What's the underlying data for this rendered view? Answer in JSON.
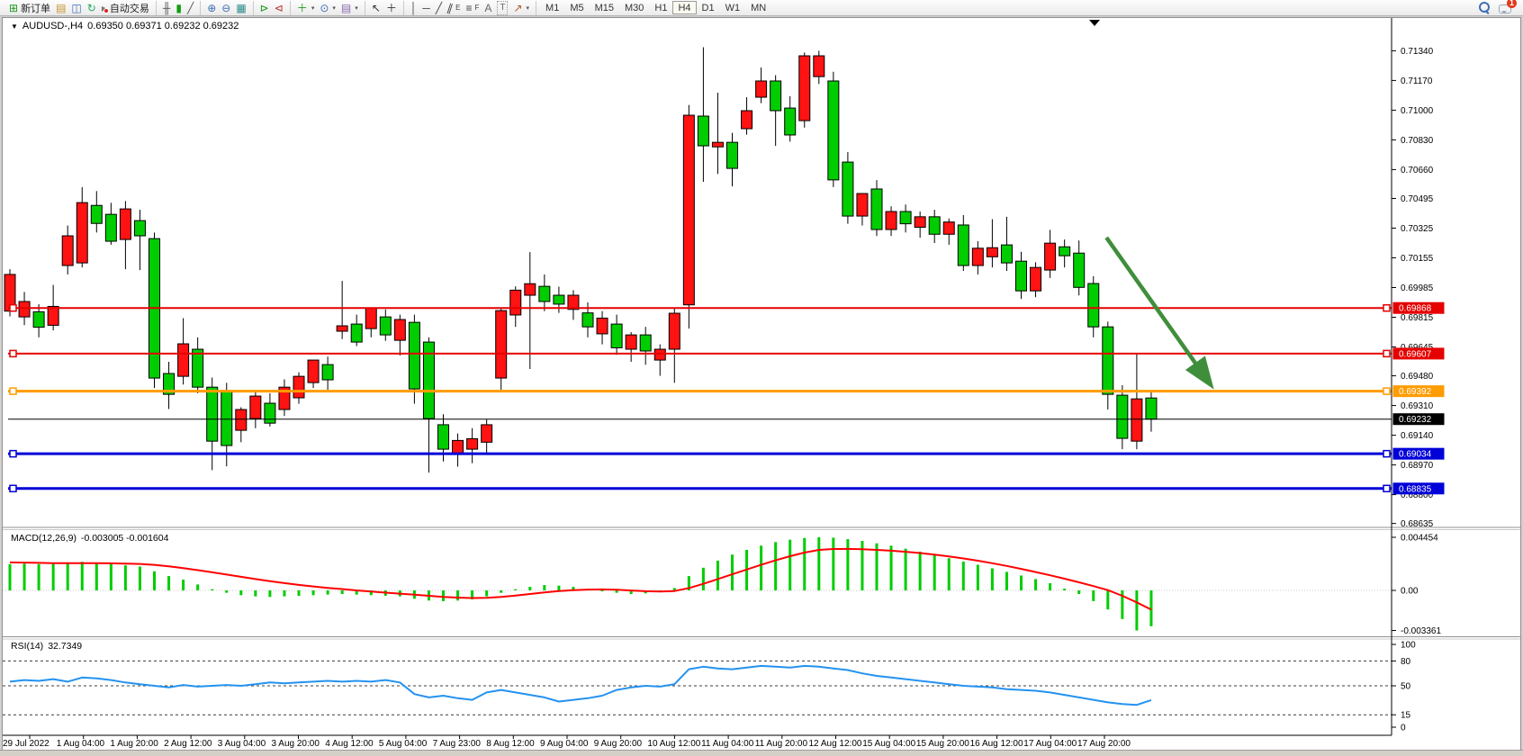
{
  "window": {
    "title_prefix": "▼",
    "symbol_period": "AUDUSD-,H4",
    "quote_text": "0.69350 0.69371 0.69232 0.69232"
  },
  "toolbar": {
    "new_order": "新订单",
    "autotrading": "自动交易",
    "notification_badge": "1",
    "timeframes": [
      "M1",
      "M5",
      "M15",
      "M30",
      "H1",
      "H4",
      "D1",
      "W1",
      "MN"
    ],
    "active_timeframe": "H4",
    "icons": {
      "new_order": "⊞",
      "charts_profile": "▤",
      "new_chart": "◫",
      "refresh": "↻",
      "autotrade": "▸",
      "bars": "╫",
      "candles": "▮",
      "line": "╱",
      "zoom_in": "⊕",
      "zoom_out": "⊖",
      "tile": "▦",
      "autoscroll": "⊳",
      "shift": "⊲",
      "indicators": "＋",
      "periods": "⊙",
      "templates": "▤",
      "cursor": "↖",
      "crosshair": "＋",
      "vline": "│",
      "hline": "─",
      "trend": "╱",
      "channel": "∥",
      "channel_sub": "E",
      "fibo": "≡",
      "fibo_sub": "F",
      "text": "A",
      "label": "T",
      "arrows": "↗",
      "caret": "▾"
    }
  },
  "chart_data": {
    "type": "candlestick",
    "symbol": "AUDUSD-",
    "timeframe": "H4",
    "quote": {
      "open": "0.69350",
      "high": "0.69371",
      "low": "0.69232",
      "close": "0.69232"
    },
    "colors": {
      "up": "#fe1212",
      "down": "#00cd00",
      "wick": "#000000",
      "macd_bar": "#00cd00",
      "macd_signal": "#ff0000",
      "rsi_line": "#2492f0",
      "line_red": "#e60000",
      "line_orange": "#ff9c00",
      "line_blue": "#0000d8",
      "current": "#000000",
      "arrow": "#3f8e3b"
    },
    "price_axis": {
      "min": 0.68635,
      "max": 0.7134,
      "ticks": [
        "0.71340",
        "0.71170",
        "0.71000",
        "0.70830",
        "0.70660",
        "0.70495",
        "0.70325",
        "0.70155",
        "0.69985",
        "0.69815",
        "0.69645",
        "0.69480",
        "0.69310",
        "0.69140",
        "0.68970",
        "0.68800",
        "0.68635"
      ]
    },
    "x_labels": [
      "29 Jul 2022",
      "1 Aug 04:00",
      "1 Aug 20:00",
      "2 Aug 12:00",
      "3 Aug 04:00",
      "3 Aug 20:00",
      "4 Aug 12:00",
      "5 Aug 04:00",
      "7 Aug 23:00",
      "8 Aug 12:00",
      "9 Aug 04:00",
      "9 Aug 20:00",
      "10 Aug 12:00",
      "11 Aug 04:00",
      "11 Aug 20:00",
      "12 Aug 12:00",
      "15 Aug 04:00",
      "15 Aug 20:00",
      "16 Aug 12:00",
      "17 Aug 04:00",
      "17 Aug 20:00"
    ],
    "candles": [
      [
        0.6985,
        0.7009,
        0.6982,
        0.7006
      ],
      [
        0.69817,
        0.6996,
        0.6977,
        0.69905
      ],
      [
        0.69846,
        0.6989,
        0.697,
        0.69758
      ],
      [
        0.69769,
        0.7,
        0.6974,
        0.69877
      ],
      [
        0.70111,
        0.7034,
        0.7006,
        0.70281
      ],
      [
        0.70126,
        0.7056,
        0.701,
        0.70471
      ],
      [
        0.70455,
        0.70537,
        0.703,
        0.70352
      ],
      [
        0.70404,
        0.7047,
        0.7023,
        0.7025
      ],
      [
        0.7026,
        0.7048,
        0.7009,
        0.70435
      ],
      [
        0.70368,
        0.7043,
        0.70085,
        0.70281
      ],
      [
        0.70265,
        0.703,
        0.6941,
        0.69467
      ],
      [
        0.69493,
        0.6956,
        0.6929,
        0.69374
      ],
      [
        0.69477,
        0.6981,
        0.6943,
        0.69663
      ],
      [
        0.69632,
        0.697,
        0.6938,
        0.69415
      ],
      [
        0.69415,
        0.6947,
        0.6894,
        0.69106
      ],
      [
        0.6939,
        0.6944,
        0.68962,
        0.69081
      ],
      [
        0.69168,
        0.693,
        0.691,
        0.69287
      ],
      [
        0.69235,
        0.6939,
        0.6918,
        0.69364
      ],
      [
        0.69323,
        0.6938,
        0.6919,
        0.69209
      ],
      [
        0.69287,
        0.6946,
        0.6925,
        0.69415
      ],
      [
        0.69354,
        0.695,
        0.6932,
        0.69477
      ],
      [
        0.69441,
        0.6956,
        0.6941,
        0.6957
      ],
      [
        0.69544,
        0.6959,
        0.694,
        0.69457
      ],
      [
        0.69735,
        0.70023,
        0.6969,
        0.69766
      ],
      [
        0.69776,
        0.6983,
        0.6965,
        0.69673
      ],
      [
        0.6975,
        0.6987,
        0.697,
        0.69869
      ],
      [
        0.69817,
        0.6986,
        0.6968,
        0.69714
      ],
      [
        0.69683,
        0.6983,
        0.69596,
        0.69802
      ],
      [
        0.69786,
        0.6983,
        0.6932,
        0.69405
      ],
      [
        0.69673,
        0.697,
        0.68926,
        0.69235
      ],
      [
        0.692,
        0.6926,
        0.6899,
        0.6906
      ],
      [
        0.69034,
        0.6915,
        0.6896,
        0.6911
      ],
      [
        0.6906,
        0.6918,
        0.6898,
        0.6912
      ],
      [
        0.691,
        0.6923,
        0.6903,
        0.692
      ],
      [
        0.69467,
        0.6987,
        0.694,
        0.69853
      ],
      [
        0.69828,
        0.69992,
        0.6976,
        0.6997
      ],
      [
        0.69941,
        0.70188,
        0.69519,
        0.70007
      ],
      [
        0.69992,
        0.7006,
        0.6985,
        0.69905
      ],
      [
        0.69941,
        0.6999,
        0.6984,
        0.6989
      ],
      [
        0.6986,
        0.6997,
        0.698,
        0.69941
      ],
      [
        0.6984,
        0.699,
        0.697,
        0.6976
      ],
      [
        0.6972,
        0.6985,
        0.6966,
        0.6981
      ],
      [
        0.69776,
        0.6983,
        0.696,
        0.6964
      ],
      [
        0.69632,
        0.6973,
        0.6956,
        0.69714
      ],
      [
        0.69714,
        0.6976,
        0.69543,
        0.69622
      ],
      [
        0.6957,
        0.6966,
        0.6948,
        0.69632
      ],
      [
        0.69632,
        0.6987,
        0.6944,
        0.69838
      ],
      [
        0.69886,
        0.7103,
        0.6975,
        0.70971
      ],
      [
        0.70966,
        0.7136,
        0.7059,
        0.70796
      ],
      [
        0.7079,
        0.711,
        0.70635,
        0.70816
      ],
      [
        0.70816,
        0.7087,
        0.70564,
        0.70667
      ],
      [
        0.70894,
        0.71074,
        0.7086,
        0.70997
      ],
      [
        0.71074,
        0.71244,
        0.7104,
        0.71167
      ],
      [
        0.71167,
        0.712,
        0.70796,
        0.70997
      ],
      [
        0.71012,
        0.7108,
        0.7082,
        0.70858
      ],
      [
        0.7094,
        0.7133,
        0.709,
        0.71311
      ],
      [
        0.71192,
        0.7134,
        0.7115,
        0.71311
      ],
      [
        0.71167,
        0.7122,
        0.7056,
        0.70601
      ],
      [
        0.70703,
        0.7076,
        0.7035,
        0.70394
      ],
      [
        0.70394,
        0.7048,
        0.7034,
        0.70523
      ],
      [
        0.70549,
        0.706,
        0.7028,
        0.70317
      ],
      [
        0.70317,
        0.7045,
        0.7028,
        0.7042
      ],
      [
        0.7042,
        0.7046,
        0.703,
        0.7035
      ],
      [
        0.7033,
        0.7042,
        0.7027,
        0.7039
      ],
      [
        0.7039,
        0.7043,
        0.7024,
        0.7029
      ],
      [
        0.7029,
        0.7038,
        0.7023,
        0.7036
      ],
      [
        0.70343,
        0.704,
        0.7008,
        0.70111
      ],
      [
        0.70111,
        0.7025,
        0.7006,
        0.7021
      ],
      [
        0.70161,
        0.70376,
        0.701,
        0.70213
      ],
      [
        0.70229,
        0.7039,
        0.7008,
        0.70126
      ],
      [
        0.70136,
        0.7019,
        0.6992,
        0.69966
      ],
      [
        0.69966,
        0.7013,
        0.6993,
        0.701
      ],
      [
        0.70085,
        0.70315,
        0.7004,
        0.70239
      ],
      [
        0.70218,
        0.7026,
        0.701,
        0.70167
      ],
      [
        0.70182,
        0.70254,
        0.6994,
        0.69986
      ],
      [
        0.70008,
        0.7005,
        0.697,
        0.6976
      ],
      [
        0.6976,
        0.6979,
        0.69287,
        0.69374
      ],
      [
        0.69369,
        0.69426,
        0.6906,
        0.69122
      ],
      [
        0.69106,
        0.69607,
        0.6906,
        0.69348
      ],
      [
        0.69353,
        0.6939,
        0.6916,
        0.69232
      ]
    ],
    "horizontal_lines": [
      {
        "price": 0.69868,
        "label": "0.69868",
        "color": "#e60000",
        "width": 2
      },
      {
        "price": 0.69607,
        "label": "0.69607",
        "color": "#e60000",
        "width": 2
      },
      {
        "price": 0.69392,
        "label": "0.69392",
        "color": "#ff9c00",
        "width": 3
      },
      {
        "price": 0.69034,
        "label": "0.69034",
        "color": "#0000d8",
        "width": 3
      },
      {
        "price": 0.68835,
        "label": "0.68835",
        "color": "#0000d8",
        "width": 3
      }
    ],
    "current_price": {
      "value": 0.69232,
      "label": "0.69232"
    },
    "trend_arrow": {
      "start_index": 75.9,
      "start_price": 0.70271,
      "end_index": 83.1,
      "end_price": 0.69431
    },
    "macd": {
      "label": "MACD(12,26,9)",
      "value_text": "-0.003005 -0.001604",
      "axis_ticks": [
        {
          "v": 4.454,
          "t": "0.004454"
        },
        {
          "v": 0,
          "t": "0.00"
        },
        {
          "v": -3.361,
          "t": "-0.003361"
        }
      ],
      "values": [
        2.2,
        2.25,
        2.2,
        2.3,
        2.35,
        2.4,
        2.3,
        2.2,
        2.1,
        2.0,
        1.6,
        1.2,
        0.9,
        0.5,
        0.1,
        -0.2,
        -0.4,
        -0.5,
        -0.55,
        -0.5,
        -0.45,
        -0.4,
        -0.35,
        -0.3,
        -0.35,
        -0.4,
        -0.45,
        -0.5,
        -0.7,
        -0.85,
        -0.9,
        -0.85,
        -0.75,
        -0.5,
        -0.2,
        0.1,
        0.3,
        0.45,
        0.4,
        0.3,
        0.15,
        -0.05,
        -0.2,
        -0.3,
        -0.25,
        -0.1,
        0.2,
        1.2,
        1.9,
        2.5,
        3.0,
        3.4,
        3.75,
        4.05,
        4.25,
        4.4,
        4.454,
        4.42,
        4.3,
        4.15,
        3.95,
        3.75,
        3.5,
        3.25,
        3.0,
        2.7,
        2.42,
        2.15,
        1.85,
        1.55,
        1.25,
        0.95,
        0.6,
        0.15,
        -0.3,
        -0.9,
        -1.6,
        -2.4,
        -3.361,
        -3.005
      ],
      "signal": [
        2.35,
        2.33,
        2.31,
        2.29,
        2.28,
        2.28,
        2.28,
        2.27,
        2.25,
        2.22,
        2.14,
        2.02,
        1.87,
        1.7,
        1.52,
        1.33,
        1.14,
        0.95,
        0.77,
        0.61,
        0.46,
        0.33,
        0.21,
        0.11,
        0.0,
        -0.1,
        -0.19,
        -0.27,
        -0.36,
        -0.45,
        -0.54,
        -0.6,
        -0.64,
        -0.62,
        -0.54,
        -0.43,
        -0.3,
        -0.17,
        -0.06,
        0.02,
        0.07,
        0.08,
        0.05,
        -0.01,
        -0.07,
        -0.1,
        -0.05,
        0.2,
        0.55,
        0.95,
        1.35,
        1.75,
        2.14,
        2.52,
        2.87,
        3.17,
        3.4,
        3.47,
        3.48,
        3.45,
        3.4,
        3.33,
        3.24,
        3.13,
        3.0,
        2.85,
        2.68,
        2.49,
        2.28,
        2.05,
        1.8,
        1.54,
        1.27,
        0.98,
        0.68,
        0.36,
        0.02,
        -0.45,
        -1.0,
        -1.604
      ]
    },
    "rsi": {
      "label": "RSI(14)",
      "value_text": "32.7349",
      "levels": [
        80,
        50,
        15
      ],
      "axis_ticks": [
        {
          "v": 100,
          "t": "100"
        },
        {
          "v": 80,
          "t": "80"
        },
        {
          "v": 50,
          "t": "50"
        },
        {
          "v": 15,
          "t": "15"
        },
        {
          "v": 0,
          "t": "0"
        }
      ],
      "values": [
        55,
        57,
        56,
        58,
        55,
        60,
        59,
        57,
        54,
        52,
        50,
        48,
        51,
        49,
        50,
        51,
        50,
        52,
        54,
        53,
        54,
        55,
        56,
        55,
        56,
        55,
        57,
        54,
        40,
        36,
        38,
        35,
        33,
        42,
        45,
        42,
        39,
        36,
        31,
        33,
        35,
        38,
        45,
        48,
        50,
        49,
        52,
        70,
        73,
        71,
        70,
        72,
        74,
        73,
        72,
        74,
        73,
        71,
        69,
        65,
        62,
        60,
        58,
        56,
        54,
        52,
        50,
        49,
        48,
        46,
        45,
        44,
        42,
        39,
        36,
        33,
        30,
        28,
        27,
        32.73
      ]
    }
  }
}
